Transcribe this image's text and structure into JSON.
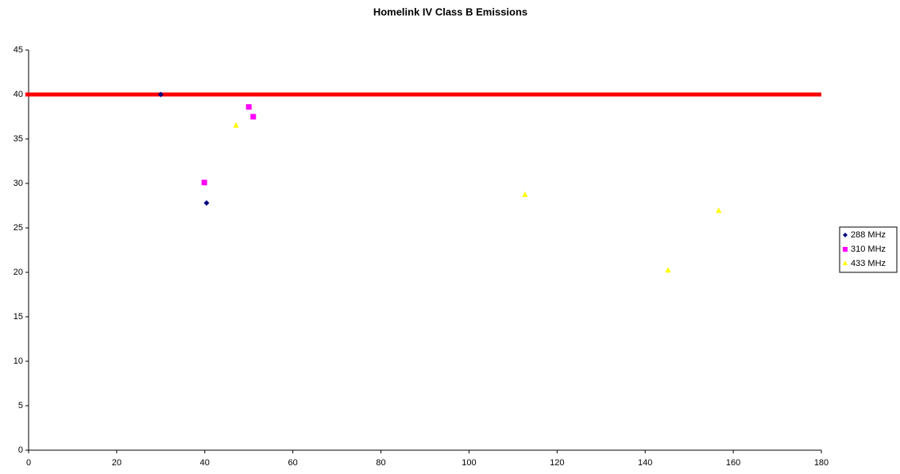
{
  "chart_data": {
    "type": "scatter",
    "title": "Homelink IV Class B Emissions",
    "series": [
      {
        "name": "288 MHz",
        "color": "#000080",
        "marker": "diamond",
        "x": [
          30,
          40.4
        ],
        "values": [
          40,
          27.8
        ]
      },
      {
        "name": "310 MHz",
        "color": "#ff00ff",
        "marker": "square",
        "x": [
          39.9,
          50,
          51
        ],
        "values": [
          30.1,
          38.6,
          37.5
        ]
      },
      {
        "name": "433 MHz",
        "color": "#ffff00",
        "marker": "triangle",
        "x": [
          47.1,
          112.7,
          145.2,
          156.7
        ],
        "values": [
          36.5,
          28.7,
          20.2,
          26.9
        ]
      }
    ],
    "reference_line": {
      "value": 40,
      "color": "#ff0000"
    },
    "xlim": [
      0,
      180
    ],
    "xticks": [
      0,
      20,
      40,
      60,
      80,
      100,
      120,
      140,
      160,
      180
    ],
    "ylim": [
      0,
      45
    ],
    "yticks": [
      0,
      5,
      10,
      15,
      20,
      25,
      30,
      35,
      40,
      45
    ],
    "grid": false,
    "legend": "right"
  }
}
